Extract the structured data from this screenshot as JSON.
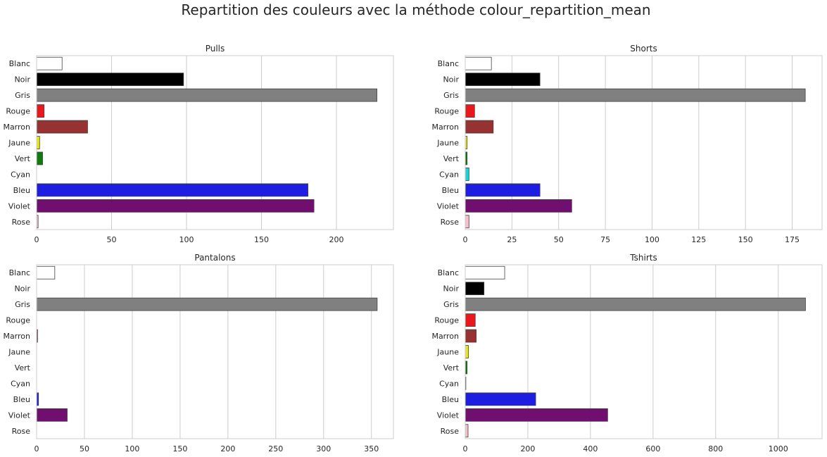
{
  "figure": {
    "suptitle": "Repartition des couleurs avec la méthode colour_repartition_mean"
  },
  "chart_data": [
    {
      "type": "bar",
      "orientation": "horizontal",
      "title": "Pulls",
      "categories": [
        "Blanc",
        "Noir",
        "Gris",
        "Rouge",
        "Marron",
        "Jaune",
        "Vert",
        "Cyan",
        "Bleu",
        "Violet",
        "Rose"
      ],
      "values": [
        17,
        98,
        227,
        5,
        34,
        2,
        4,
        0,
        181,
        185,
        1
      ],
      "xlim": [
        0,
        238
      ],
      "xticks": [
        0,
        50,
        100,
        150,
        200
      ],
      "grid": true
    },
    {
      "type": "bar",
      "orientation": "horizontal",
      "title": "Shorts",
      "categories": [
        "Blanc",
        "Noir",
        "Gris",
        "Rouge",
        "Marron",
        "Jaune",
        "Vert",
        "Cyan",
        "Bleu",
        "Violet",
        "Rose"
      ],
      "values": [
        14,
        40,
        182,
        5,
        15,
        1,
        1,
        2,
        40,
        57,
        2
      ],
      "xlim": [
        0,
        191
      ],
      "xticks": [
        0,
        25,
        50,
        75,
        100,
        125,
        150,
        175
      ],
      "grid": true
    },
    {
      "type": "bar",
      "orientation": "horizontal",
      "title": "Pantalons",
      "categories": [
        "Blanc",
        "Noir",
        "Gris",
        "Rouge",
        "Marron",
        "Jaune",
        "Vert",
        "Cyan",
        "Bleu",
        "Violet",
        "Rose"
      ],
      "values": [
        19,
        0,
        356,
        0,
        1,
        0,
        0,
        0,
        2,
        32,
        0
      ],
      "xlim": [
        0,
        373
      ],
      "xticks": [
        0,
        50,
        100,
        150,
        200,
        250,
        300,
        350
      ],
      "grid": true
    },
    {
      "type": "bar",
      "orientation": "horizontal",
      "title": "Tshirts",
      "categories": [
        "Blanc",
        "Noir",
        "Gris",
        "Rouge",
        "Marron",
        "Jaune",
        "Vert",
        "Cyan",
        "Bleu",
        "Violet",
        "Rose"
      ],
      "values": [
        126,
        60,
        1087,
        32,
        35,
        10,
        6,
        2,
        225,
        455,
        9
      ],
      "xlim": [
        0,
        1140
      ],
      "xticks": [
        0,
        200,
        400,
        600,
        800,
        1000
      ],
      "grid": true
    }
  ],
  "colors": {
    "Blanc": "#ffffff",
    "Noir": "#000000",
    "Gris": "#808080",
    "Rouge": "#e8191c",
    "Marron": "#963232",
    "Jaune": "#e6e619",
    "Vert": "#107a10",
    "Cyan": "#19d4d4",
    "Bleu": "#1e1ee0",
    "Violet": "#700f70",
    "Rose": "#f5bec8"
  }
}
